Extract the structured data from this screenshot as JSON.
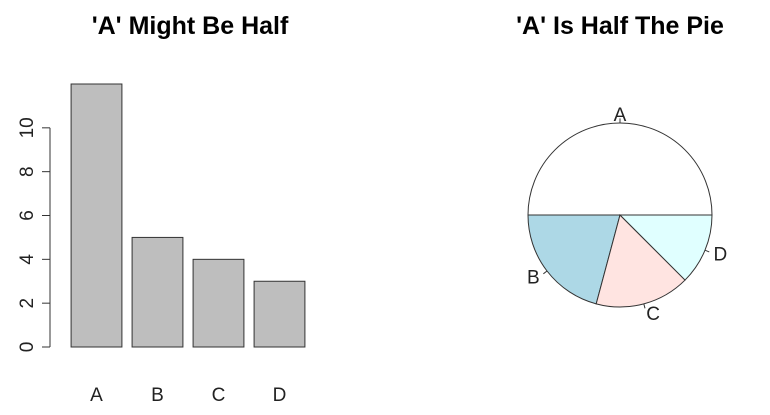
{
  "chart_data": [
    {
      "type": "bar",
      "title": "'A' Might Be Half",
      "categories": [
        "A",
        "B",
        "C",
        "D"
      ],
      "values": [
        12,
        5,
        4,
        3
      ],
      "ylim": [
        0,
        12
      ],
      "yticks": [
        "0",
        "2",
        "4",
        "6",
        "8",
        "10"
      ],
      "bar_color": "#bebebe",
      "bar_border": "#333333",
      "grid": false
    },
    {
      "type": "pie",
      "title": "'A' Is Half The Pie",
      "labels": [
        "A",
        "B",
        "C",
        "D"
      ],
      "values": [
        12,
        5,
        4,
        3
      ],
      "colors": [
        "#ffffff",
        "#add8e6",
        "#ffe4e1",
        "#e0ffff"
      ],
      "border": "#333333"
    }
  ]
}
